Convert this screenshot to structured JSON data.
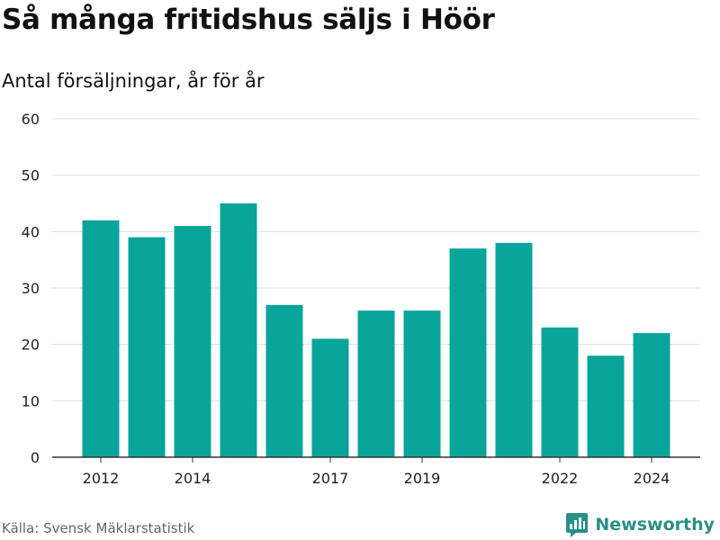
{
  "title": "Så många fritidshus säljs i Höör",
  "subtitle": "Antal försäljningar, år för år",
  "source": "Källa: Svensk Mäklarstatistik",
  "brand": {
    "name": "Newsworthy",
    "logo_icon": "newsworthy-logo-icon"
  },
  "colors": {
    "bar": "#0aa59a",
    "grid": "#dddddd",
    "axis": "#333333",
    "brand": "#2a8f86"
  },
  "chart_data": {
    "type": "bar",
    "categories": [
      "2012",
      "2013",
      "2014",
      "2015",
      "2016",
      "2017",
      "2018",
      "2019",
      "2020",
      "2021",
      "2022",
      "2023",
      "2024"
    ],
    "values": [
      42,
      39,
      41,
      45,
      27,
      21,
      26,
      26,
      37,
      38,
      23,
      18,
      22
    ],
    "xticks": [
      "2012",
      "2014",
      "2017",
      "2019",
      "2022",
      "2024"
    ],
    "yticks": [
      0,
      10,
      20,
      30,
      40,
      50,
      60
    ],
    "ylim": [
      0,
      60
    ],
    "grid": true,
    "xlabel": "",
    "ylabel": ""
  }
}
